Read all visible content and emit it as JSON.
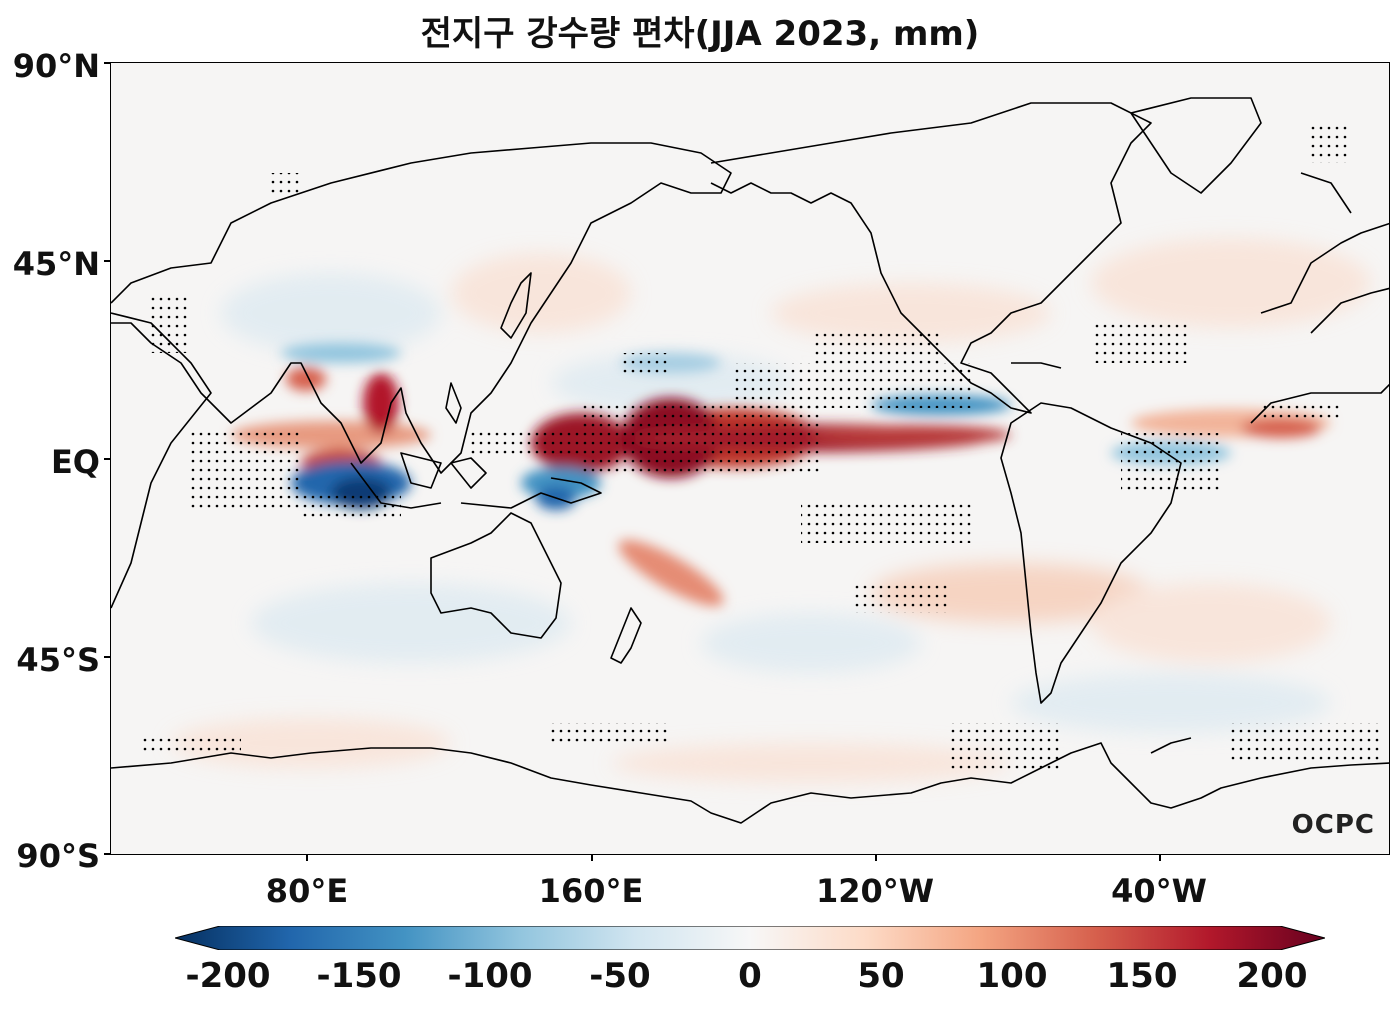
{
  "title": "전지구 강수량 편차(JJA 2023, mm)",
  "lat_labels": [
    "90°N",
    "45°N",
    "EQ",
    "45°S",
    "90°S"
  ],
  "lon_labels": [
    "80°E",
    "160°E",
    "120°W",
    "40°W"
  ],
  "colorbar": {
    "ticks": [
      "-200",
      "-150",
      "-100",
      "-50",
      "0",
      "50",
      "100",
      "150",
      "200"
    ],
    "min": -200,
    "max": 200,
    "colors": [
      "#053061",
      "#2166ac",
      "#4393c3",
      "#92c5de",
      "#d1e5f0",
      "#f7f7f7",
      "#fddbc7",
      "#f4a582",
      "#d6604d",
      "#b2182b",
      "#67001f"
    ]
  },
  "watermark": "OCPC"
}
